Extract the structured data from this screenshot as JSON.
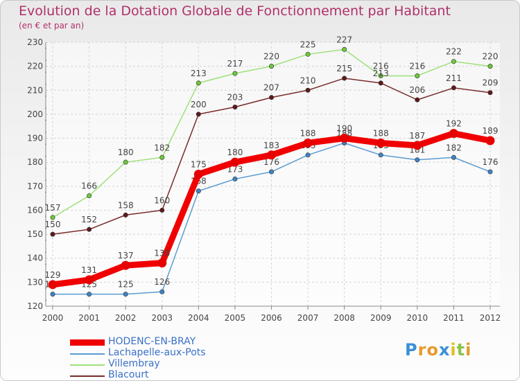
{
  "chart_data": {
    "type": "line",
    "title": "Evolution de la Dotation Globale de Fonctionnement par Habitant",
    "subtitle": "(en € et par an)",
    "categories": [
      "2000",
      "2001",
      "2002",
      "2003",
      "2004",
      "2005",
      "2006",
      "2007",
      "2008",
      "2009",
      "2010",
      "2011",
      "2012"
    ],
    "ylim": [
      120,
      230
    ],
    "yticks": [
      120,
      130,
      140,
      150,
      160,
      170,
      180,
      190,
      200,
      210,
      220,
      230
    ],
    "grid": true,
    "series": [
      {
        "name": "Lachapelle-aux-Pots",
        "color": "#5a9bd0",
        "point_color": "#3d84c6",
        "values": [
          125,
          125,
          125,
          126,
          168,
          173,
          176,
          183,
          188,
          183,
          181,
          182,
          176
        ]
      },
      {
        "name": "Villembray",
        "color": "#9ee07a",
        "point_color": "#6cc93a",
        "values": [
          157,
          166,
          180,
          182,
          213,
          217,
          220,
          225,
          227,
          216,
          216,
          222,
          220
        ]
      },
      {
        "name": "Blacourt",
        "color": "#7a2a2a",
        "point_color": "#5e1a1a",
        "values": [
          150,
          152,
          158,
          160,
          200,
          203,
          207,
          210,
          215,
          213,
          206,
          211,
          209
        ]
      },
      {
        "name": "HODENC-EN-BRAY",
        "color": "#f00000",
        "point_color": "#e60000",
        "values": [
          129,
          131,
          137,
          138,
          175,
          180,
          183,
          188,
          190,
          188,
          187,
          192,
          189
        ]
      }
    ],
    "legend": [
      {
        "name": "HODENC-EN-BRAY",
        "color": "#f00000",
        "text_color": "#3a70c8"
      },
      {
        "name": "Lachapelle-aux-Pots",
        "color": "#5a9bd0",
        "text_color": "#3a70c8"
      },
      {
        "name": "Villembray",
        "color": "#9ee07a",
        "text_color": "#3a70c8"
      },
      {
        "name": "Blacourt",
        "color": "#7a2a2a",
        "text_color": "#3a70c8"
      }
    ]
  },
  "logo": {
    "chars": [
      "P",
      "r",
      "o",
      "x",
      "i",
      "t",
      "i"
    ],
    "colors": [
      "#3a8fd6",
      "#e89a2a",
      "#e89a2a",
      "#3a8fd6",
      "#e0c020",
      "#8bc34a",
      "#e89a2a"
    ]
  }
}
